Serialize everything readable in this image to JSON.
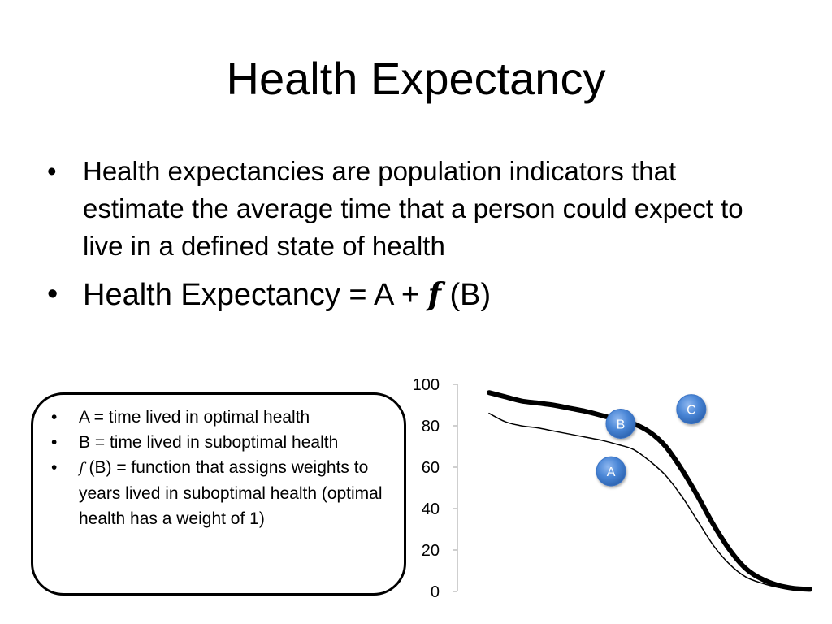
{
  "slide": {
    "title": "Health Expectancy",
    "bullets": [
      {
        "bullet": "•",
        "text": "Health expectancies are population indicators that estimate the average time that a person could expect to live in a defined state of health"
      },
      {
        "bullet": "•",
        "prefix": "Health Expectancy = A + ",
        "f_symbol": "f",
        "suffix": " (B)"
      }
    ]
  },
  "definitions": {
    "items": [
      {
        "bullet": "•",
        "text": "A = time lived in optimal health"
      },
      {
        "bullet": "•",
        "text": "B = time lived in suboptimal health"
      },
      {
        "bullet": "•",
        "f_symbol": "f",
        "text": " (B) = function that assigns weights to years lived in suboptimal health (optimal health has a weight of 1)"
      }
    ]
  },
  "chart_data": {
    "type": "line",
    "title": "",
    "xlabel": "",
    "ylabel": "",
    "ylim": [
      0,
      100
    ],
    "yticks": [
      "100",
      "80",
      "60",
      "40",
      "20",
      "0"
    ],
    "x_axis_visible": false,
    "grid": false,
    "series": [
      {
        "style": "thick",
        "color": "#000000",
        "x": [
          0,
          5,
          10,
          15,
          20,
          25,
          30,
          35,
          40,
          45,
          50,
          55,
          60,
          65,
          70,
          75,
          80,
          85,
          90,
          95,
          100
        ],
        "values": [
          96,
          94,
          92,
          91,
          90,
          88.5,
          87,
          85,
          83,
          81,
          77,
          70,
          59,
          46,
          32,
          20,
          11,
          6,
          3,
          1.5,
          1
        ]
      },
      {
        "style": "thin",
        "color": "#000000",
        "x": [
          0,
          5,
          10,
          15,
          20,
          25,
          30,
          35,
          40,
          45,
          50,
          55,
          60,
          65,
          70,
          75,
          80,
          85,
          90,
          95,
          100
        ],
        "values": [
          86,
          82,
          80,
          79,
          77.5,
          76,
          74.5,
          73,
          71,
          68.5,
          63,
          56,
          46,
          34,
          22,
          13,
          7,
          4,
          2,
          1.2,
          1
        ]
      }
    ],
    "markers": [
      {
        "label": "A",
        "x": 38,
        "y": 58,
        "color": "#4a86d6"
      },
      {
        "label": "B",
        "x": 41,
        "y": 81,
        "color": "#4a86d6"
      },
      {
        "label": "C",
        "x": 63,
        "y": 88,
        "color": "#4a86d6"
      }
    ]
  }
}
